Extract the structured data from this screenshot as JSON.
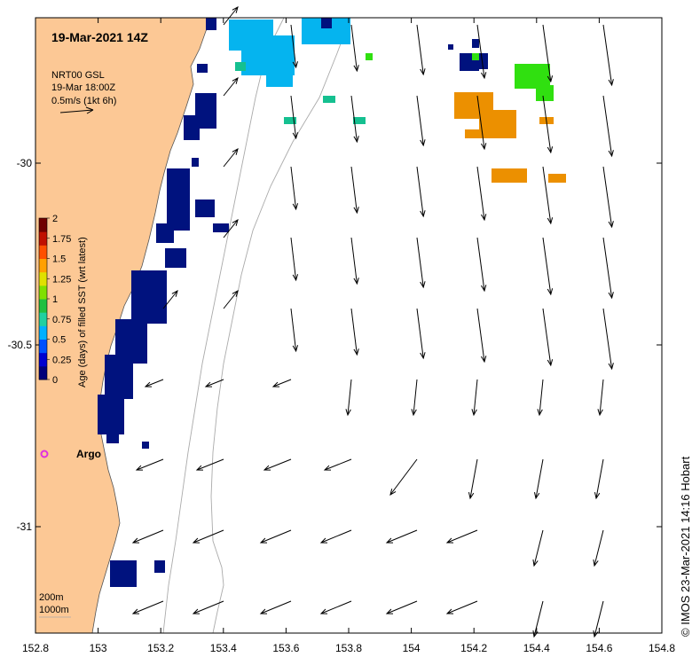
{
  "map": {
    "title": "19-Mar-2021 14Z",
    "product_lines": [
      "NRT00 GSL",
      "19-Mar 18:00Z",
      "0.5m/s  (1kt 6h)"
    ],
    "credit": "©  IMOS 23-Mar-2021 14:16 Hobart",
    "depth_contours": [
      "200m",
      "1000m"
    ],
    "argo_label": "Argo",
    "lon_ticks": [
      "152.8",
      "153",
      "153.2",
      "153.4",
      "153.6",
      "153.8",
      "154",
      "154.2",
      "154.4",
      "154.6",
      "154.8"
    ],
    "lat_ticks": [
      "-30",
      "-30.5",
      "-31"
    ],
    "extent": {
      "lon_min": 152.8,
      "lon_max": 154.8,
      "lat_min": -31.28,
      "lat_max": -29.61
    }
  },
  "colorbar": {
    "label": "Age (days) of filled SST (wrt latest)",
    "ticks": [
      "2",
      "1.75",
      "1.5",
      "1.25",
      "1",
      "0.75",
      "0.5",
      "0.25",
      "0"
    ],
    "colors": [
      "#00007a",
      "#0000d0",
      "#0050ff",
      "#00b0ff",
      "#20d0a0",
      "#20c040",
      "#80e000",
      "#e0e000",
      "#ffa000",
      "#ff5000",
      "#c01000",
      "#700000"
    ]
  },
  "colors": {
    "land": "#fcc895",
    "age_0": "#00127e",
    "age_05": "#05b4ef",
    "age_075": "#15c090",
    "age_1": "#30e010",
    "age_15": "#ec9000",
    "argo": "#e030e0"
  },
  "sst_age_patches": [
    {
      "lon": 153.35,
      "lat": -29.65,
      "age": 0.55
    },
    {
      "lon": 153.5,
      "lat": -29.68,
      "age": 0.55
    },
    {
      "lon": 153.73,
      "lat": -29.65,
      "age": 0.55
    },
    {
      "lon": 154.32,
      "lat": -29.87,
      "age": 1.55
    },
    {
      "lon": 154.4,
      "lat": -29.77,
      "age": 1.1
    },
    {
      "lon": 154.3,
      "lat": -30.03,
      "age": 1.55
    },
    {
      "lon": 153.22,
      "lat": -29.86,
      "age": 0.0
    },
    {
      "lon": 153.2,
      "lat": -30.12,
      "age": 0.0
    },
    {
      "lon": 153.13,
      "lat": -30.45,
      "age": 0.0
    },
    {
      "lon": 153.05,
      "lat": -30.7,
      "age": 0.0
    }
  ],
  "argo_float": {
    "lon": 152.83,
    "lat": -30.82
  }
}
